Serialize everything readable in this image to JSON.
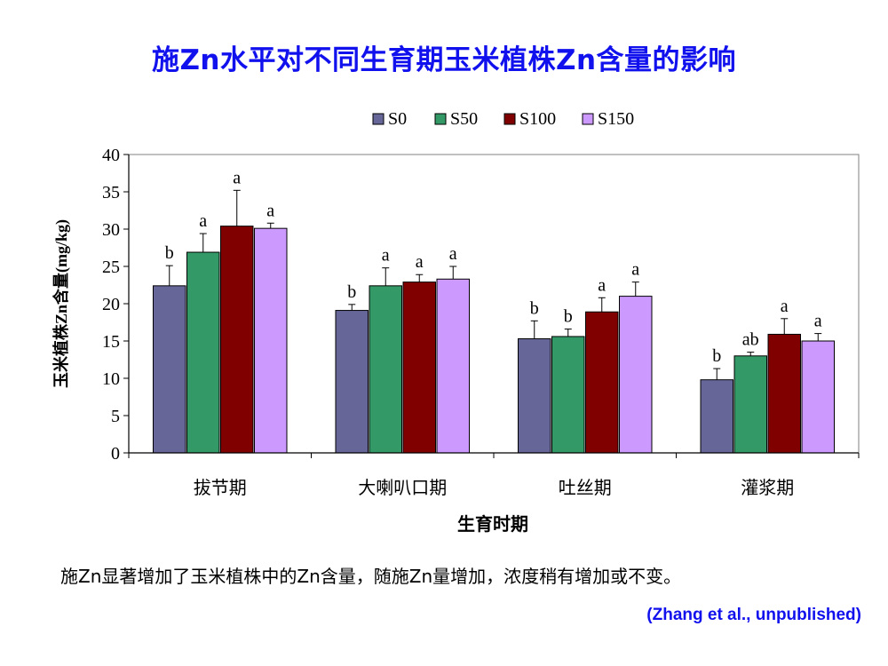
{
  "title": "施Zn水平对不同生育期玉米植株Zn含量的影响",
  "caption": "施Zn显著增加了玉米植株中的Zn含量，随施Zn量增加，浓度稍有增加或不变。",
  "source": "(Zhang et al., unpublished)",
  "chart_data": {
    "type": "bar",
    "xlabel": "生育时期",
    "ylabel": "玉米植株Zn含量(mg/kg)",
    "ylim": [
      0,
      40
    ],
    "yticks": [
      0,
      5,
      10,
      15,
      20,
      25,
      30,
      35,
      40
    ],
    "categories": [
      "拔节期",
      "大喇叭口期",
      "吐丝期",
      "灌浆期"
    ],
    "legend_position": "top",
    "grid": false,
    "series": [
      {
        "name": "S0",
        "color": "#666699",
        "values": [
          22.4,
          19.1,
          15.3,
          9.8
        ],
        "errors": [
          2.7,
          0.8,
          2.4,
          1.5
        ],
        "labels": [
          "b",
          "b",
          "b",
          "b"
        ]
      },
      {
        "name": "S50",
        "color": "#339966",
        "values": [
          26.9,
          22.4,
          15.6,
          13.0
        ],
        "errors": [
          2.5,
          2.4,
          1.0,
          0.5
        ],
        "labels": [
          "a",
          "a",
          "b",
          "ab"
        ]
      },
      {
        "name": "S100",
        "color": "#800000",
        "values": [
          30.4,
          22.9,
          18.9,
          15.9
        ],
        "errors": [
          4.8,
          1.0,
          1.9,
          2.1
        ],
        "labels": [
          "a",
          "a",
          "a",
          "a"
        ]
      },
      {
        "name": "S150",
        "color": "#cc99ff",
        "values": [
          30.1,
          23.3,
          21.0,
          15.0
        ],
        "errors": [
          0.7,
          1.7,
          1.9,
          1.0
        ],
        "labels": [
          "a",
          "a",
          "a",
          "a"
        ]
      }
    ]
  }
}
